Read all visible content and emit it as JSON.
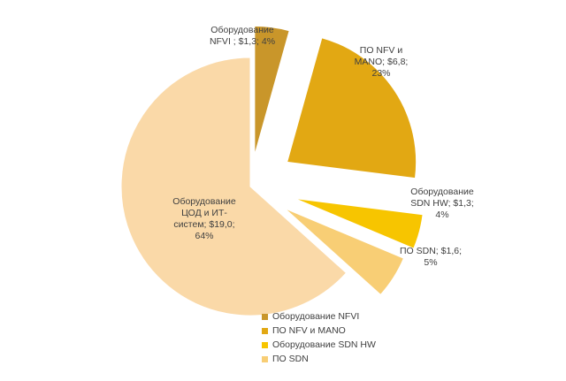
{
  "chart_data": {
    "type": "pie",
    "title": "",
    "exploded": true,
    "slices": [
      {
        "name": "Оборудование NFVI",
        "value": 1.3,
        "percent": 4,
        "color": "#C9962A",
        "label_lines": [
          "Оборудование",
          "NFVI ; $1,3; 4%"
        ]
      },
      {
        "name": "ПО NFV и MANO",
        "value": 6.8,
        "percent": 23,
        "color": "#E2A813",
        "label_lines": [
          "ПО NFV и",
          "MANO; $6,8;",
          "23%"
        ]
      },
      {
        "name": "Оборудование SDN HW",
        "value": 1.3,
        "percent": 4,
        "color": "#F7C500",
        "label_lines": [
          "Оборудование",
          "SDN HW; $1,3;",
          "4%"
        ]
      },
      {
        "name": "ПО SDN",
        "value": 1.6,
        "percent": 5,
        "color": "#F8CE75",
        "label_lines": [
          "ПО SDN; $1,6;",
          "5%"
        ]
      },
      {
        "name": "Оборудование ЦОД и ИТ-систем",
        "value": 19.0,
        "percent": 64,
        "color": "#FAD9A8",
        "label_lines": [
          "Оборудование",
          "ЦОД и ИТ-",
          "систем; $19,0;",
          "64%"
        ]
      }
    ],
    "legend": [
      {
        "label": "Оборудование NFVI",
        "color": "#C9962A"
      },
      {
        "label": "ПО NFV и MANO",
        "color": "#E2A813"
      },
      {
        "label": "Оборудование SDN HW",
        "color": "#F7C500"
      },
      {
        "label": "ПО SDN",
        "color": "#F8CE75"
      }
    ],
    "legend_position": "bottom"
  }
}
